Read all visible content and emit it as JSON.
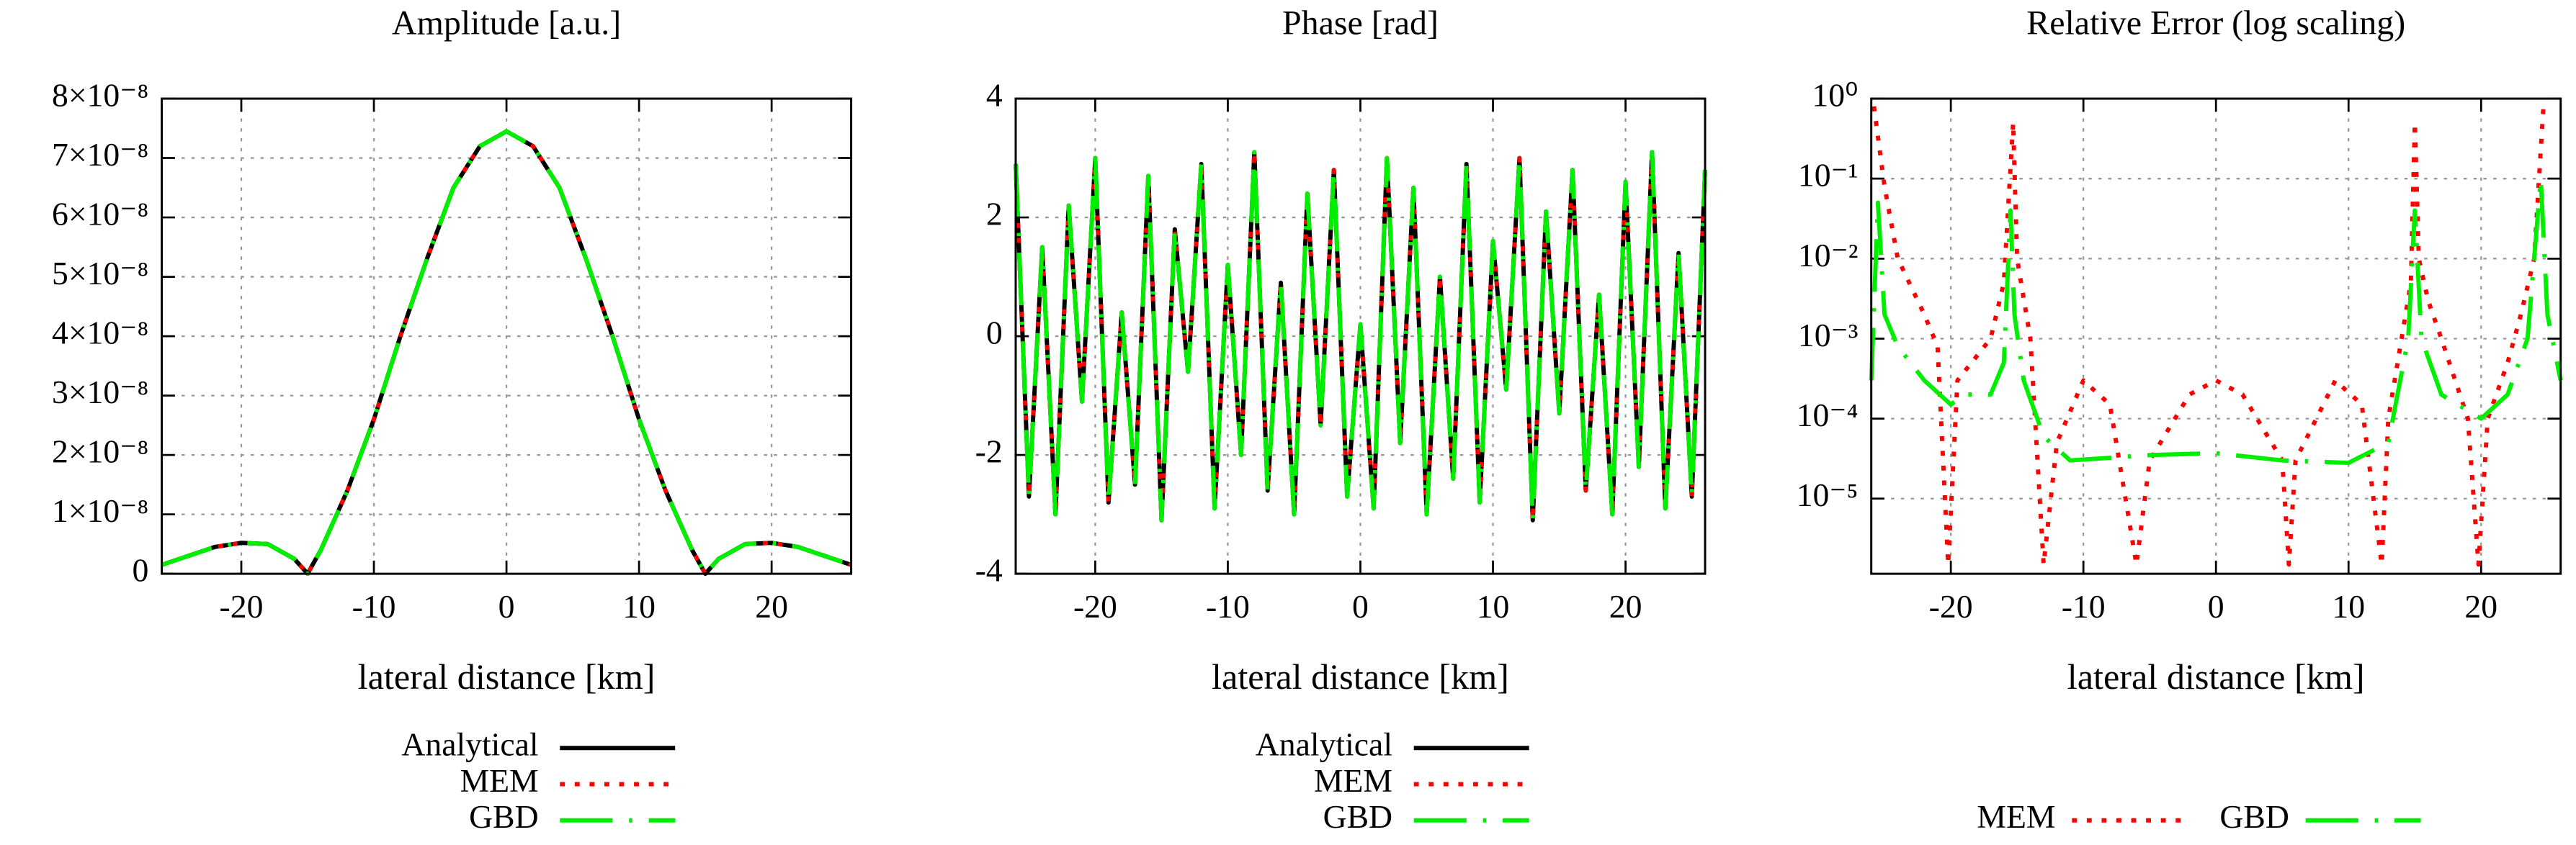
{
  "chart_data": [
    {
      "type": "line",
      "title": "Amplitude [a.u.]",
      "x_label": "lateral distance [km]",
      "legend": "below-stacked",
      "grid": true,
      "x": [
        -26,
        -24,
        -22,
        -20,
        -18,
        -16,
        -15,
        -14,
        -12,
        -10,
        -8,
        -6,
        -4,
        -2,
        0,
        2,
        4,
        6,
        8,
        10,
        12,
        14,
        15,
        16,
        18,
        20,
        22,
        24,
        26
      ],
      "series": [
        {
          "name": "Analytical",
          "color": "#000000",
          "style": "solid",
          "values": [
            1.5e-09,
            3e-09,
            4.5e-09,
            5.2e-09,
            5e-09,
            2.5e-09,
            0,
            4e-09,
            1.4e-08,
            2.6e-08,
            4e-08,
            5.3e-08,
            6.5e-08,
            7.2e-08,
            7.45e-08,
            7.2e-08,
            6.5e-08,
            5.3e-08,
            4e-08,
            2.6e-08,
            1.4e-08,
            4e-09,
            0,
            2.5e-09,
            5e-09,
            5.2e-09,
            4.5e-09,
            3e-09,
            1.5e-09
          ]
        },
        {
          "name": "MEM",
          "color": "#ff0000",
          "style": "dotted",
          "values": [
            1.5e-09,
            3e-09,
            4.5e-09,
            5.2e-09,
            5e-09,
            2.5e-09,
            0,
            4e-09,
            1.4e-08,
            2.6e-08,
            4e-08,
            5.3e-08,
            6.5e-08,
            7.2e-08,
            7.45e-08,
            7.2e-08,
            6.5e-08,
            5.3e-08,
            4e-08,
            2.6e-08,
            1.4e-08,
            4e-09,
            0,
            2.5e-09,
            5e-09,
            5.2e-09,
            4.5e-09,
            3e-09,
            1.5e-09
          ]
        },
        {
          "name": "GBD",
          "color": "#00ee00",
          "style": "dashed",
          "values": [
            1.5e-09,
            3e-09,
            4.5e-09,
            5.2e-09,
            5e-09,
            2.5e-09,
            0,
            4e-09,
            1.4e-08,
            2.6e-08,
            4e-08,
            5.3e-08,
            6.5e-08,
            7.2e-08,
            7.45e-08,
            7.2e-08,
            6.5e-08,
            5.3e-08,
            4e-08,
            2.6e-08,
            1.4e-08,
            4e-09,
            0,
            2.5e-09,
            5e-09,
            5.2e-09,
            4.5e-09,
            3e-09,
            1.5e-09
          ]
        }
      ],
      "xlim": [
        -26,
        26
      ],
      "xticks": [
        -20,
        -10,
        0,
        10,
        20
      ],
      "ylim": [
        0,
        8e-08
      ],
      "yticks": [
        0,
        {
          "value": 1e-08,
          "label": "1×10⁻⁸"
        },
        {
          "value": 2e-08,
          "label": "2×10⁻⁸"
        },
        {
          "value": 3e-08,
          "label": "3×10⁻⁸"
        },
        {
          "value": 4e-08,
          "label": "4×10⁻⁸"
        },
        {
          "value": 5e-08,
          "label": "5×10⁻⁸"
        },
        {
          "value": 6e-08,
          "label": "6×10⁻⁸"
        },
        {
          "value": 7e-08,
          "label": "7×10⁻⁸"
        },
        {
          "value": 8e-08,
          "label": "8×10⁻⁸"
        }
      ]
    },
    {
      "type": "line",
      "title": "Phase [rad]",
      "x_label": "lateral distance [km]",
      "legend": "below-stacked",
      "grid": true,
      "x": [
        -26,
        -25,
        -24,
        -23,
        -22,
        -21,
        -20,
        -19,
        -18,
        -17,
        -16,
        -15,
        -14,
        -13,
        -12,
        -11,
        -10,
        -9,
        -8,
        -7,
        -6,
        -5,
        -4,
        -3,
        -2,
        -1,
        0,
        1,
        2,
        3,
        4,
        5,
        6,
        7,
        8,
        9,
        10,
        11,
        12,
        13,
        14,
        15,
        16,
        17,
        18,
        19,
        20,
        21,
        22,
        23,
        24,
        25,
        26
      ],
      "series": [
        {
          "name": "Analytical",
          "color": "#000000",
          "style": "solid",
          "values": [
            2.9,
            -2.7,
            1.5,
            -3.0,
            2.2,
            -1.1,
            3.0,
            -2.8,
            0.4,
            -2.5,
            2.7,
            -3.1,
            1.8,
            -0.6,
            2.9,
            -2.9,
            1.2,
            -2.0,
            3.1,
            -2.6,
            0.9,
            -3.0,
            2.4,
            -1.5,
            2.8,
            -2.7,
            0.2,
            -2.9,
            3.0,
            -1.8,
            2.5,
            -3.0,
            1.0,
            -2.4,
            2.9,
            -2.8,
            1.6,
            -0.9,
            3.0,
            -3.1,
            2.1,
            -1.3,
            2.8,
            -2.6,
            0.7,
            -3.0,
            2.6,
            -2.2,
            3.1,
            -2.9,
            1.4,
            -2.7,
            2.8
          ]
        },
        {
          "name": "MEM",
          "color": "#ff0000",
          "style": "dotted",
          "values": [
            2.9,
            -2.7,
            1.5,
            -3.0,
            2.2,
            -1.1,
            3.0,
            -2.8,
            0.4,
            -2.5,
            2.7,
            -3.1,
            1.8,
            -0.6,
            2.9,
            -2.9,
            1.2,
            -2.0,
            3.1,
            -2.6,
            0.9,
            -3.0,
            2.4,
            -1.5,
            2.8,
            -2.7,
            0.2,
            -2.9,
            3.0,
            -1.8,
            2.5,
            -3.0,
            1.0,
            -2.4,
            2.9,
            -2.8,
            1.6,
            -0.9,
            3.0,
            -3.1,
            2.1,
            -1.3,
            2.8,
            -2.6,
            0.7,
            -3.0,
            2.6,
            -2.2,
            3.1,
            -2.9,
            1.4,
            -2.7,
            2.8
          ]
        },
        {
          "name": "GBD",
          "color": "#00ee00",
          "style": "dashed",
          "values": [
            2.9,
            -2.7,
            1.5,
            -3.0,
            2.2,
            -1.1,
            3.0,
            -2.8,
            0.4,
            -2.5,
            2.7,
            -3.1,
            1.8,
            -0.6,
            2.9,
            -2.9,
            1.2,
            -2.0,
            3.1,
            -2.6,
            0.9,
            -3.0,
            2.4,
            -1.5,
            2.8,
            -2.7,
            0.2,
            -2.9,
            3.0,
            -1.8,
            2.5,
            -3.0,
            1.0,
            -2.4,
            2.9,
            -2.8,
            1.6,
            -0.9,
            3.0,
            -3.1,
            2.1,
            -1.3,
            2.8,
            -2.6,
            0.7,
            -3.0,
            2.6,
            -2.2,
            3.1,
            -2.9,
            1.4,
            -2.7,
            2.8
          ]
        }
      ],
      "xlim": [
        -26,
        26
      ],
      "xticks": [
        -20,
        -10,
        0,
        10,
        20
      ],
      "ylim": [
        -4,
        4
      ],
      "yticks": [
        -4,
        -2,
        0,
        2,
        4
      ]
    },
    {
      "type": "line",
      "title": "Relative Error (log scaling)",
      "x_label": "lateral distance [km]",
      "legend": "below-row",
      "grid": true,
      "log_y": true,
      "series": [
        {
          "name": "MEM",
          "color": "#ff0000",
          "style": "dotted",
          "x": [
            -25.8,
            -25,
            -24,
            -22,
            -21,
            -20.2,
            -19.5,
            -17,
            -16,
            -15.3,
            -15,
            -14,
            -13,
            -12,
            -10,
            -8,
            -6,
            -5,
            -2,
            0,
            2,
            5,
            5.5,
            6,
            9,
            11,
            12.5,
            13,
            14,
            14.7,
            15,
            15.3,
            16,
            17,
            19,
            19.8,
            20.5,
            22,
            23,
            24,
            24.7
          ],
          "values": [
            0.8,
            0.08,
            0.01,
            0.002,
            0.0008,
            1.5e-06,
            0.0003,
            0.001,
            0.005,
            0.5,
            0.01,
            0.001,
            1.5e-06,
            5e-05,
            0.0003,
            0.00015,
            1.5e-06,
            3e-05,
            0.0002,
            0.0003,
            0.0002,
            3e-05,
            1.5e-06,
            3e-05,
            0.0003,
            0.00015,
            1.5e-06,
            0.0001,
            0.001,
            0.005,
            0.5,
            0.01,
            0.003,
            0.001,
            0.0001,
            1.5e-06,
            0.0001,
            0.0005,
            0.002,
            0.01,
            0.8
          ]
        },
        {
          "name": "GBD",
          "color": "#00ee00",
          "style": "dashed",
          "x": [
            -26,
            -25.5,
            -25,
            -24,
            -22,
            -20,
            -19,
            -17,
            -16,
            -15.5,
            -15.2,
            -14.5,
            -13,
            -11,
            -5,
            0,
            5,
            10,
            13,
            14.5,
            15,
            15.5,
            17,
            20,
            22,
            23.5,
            24.5,
            25,
            26
          ],
          "values": [
            0.0003,
            0.05,
            0.002,
            0.0008,
            0.0003,
            0.00015,
            0.0002,
            0.0002,
            0.0005,
            0.04,
            0.002,
            0.0003,
            6e-05,
            3e-05,
            3.5e-05,
            3.7e-05,
            3e-05,
            2.8e-05,
            5e-05,
            0.001,
            0.04,
            0.001,
            0.0002,
            0.0001,
            0.0002,
            0.001,
            0.1,
            0.002,
            0.0003
          ]
        }
      ],
      "xlim": [
        -26,
        26
      ],
      "xticks": [
        -20,
        -10,
        0,
        10,
        20
      ],
      "ylim": [
        1.15e-06,
        1
      ],
      "yticks": [
        {
          "value": 1e-05,
          "label": "10⁻⁵"
        },
        {
          "value": 0.0001,
          "label": "10⁻⁴"
        },
        {
          "value": 0.001,
          "label": "10⁻³"
        },
        {
          "value": 0.01,
          "label": "10⁻²"
        },
        {
          "value": 0.1,
          "label": "10⁻¹"
        },
        {
          "value": 1,
          "label": "10⁰"
        }
      ]
    }
  ]
}
